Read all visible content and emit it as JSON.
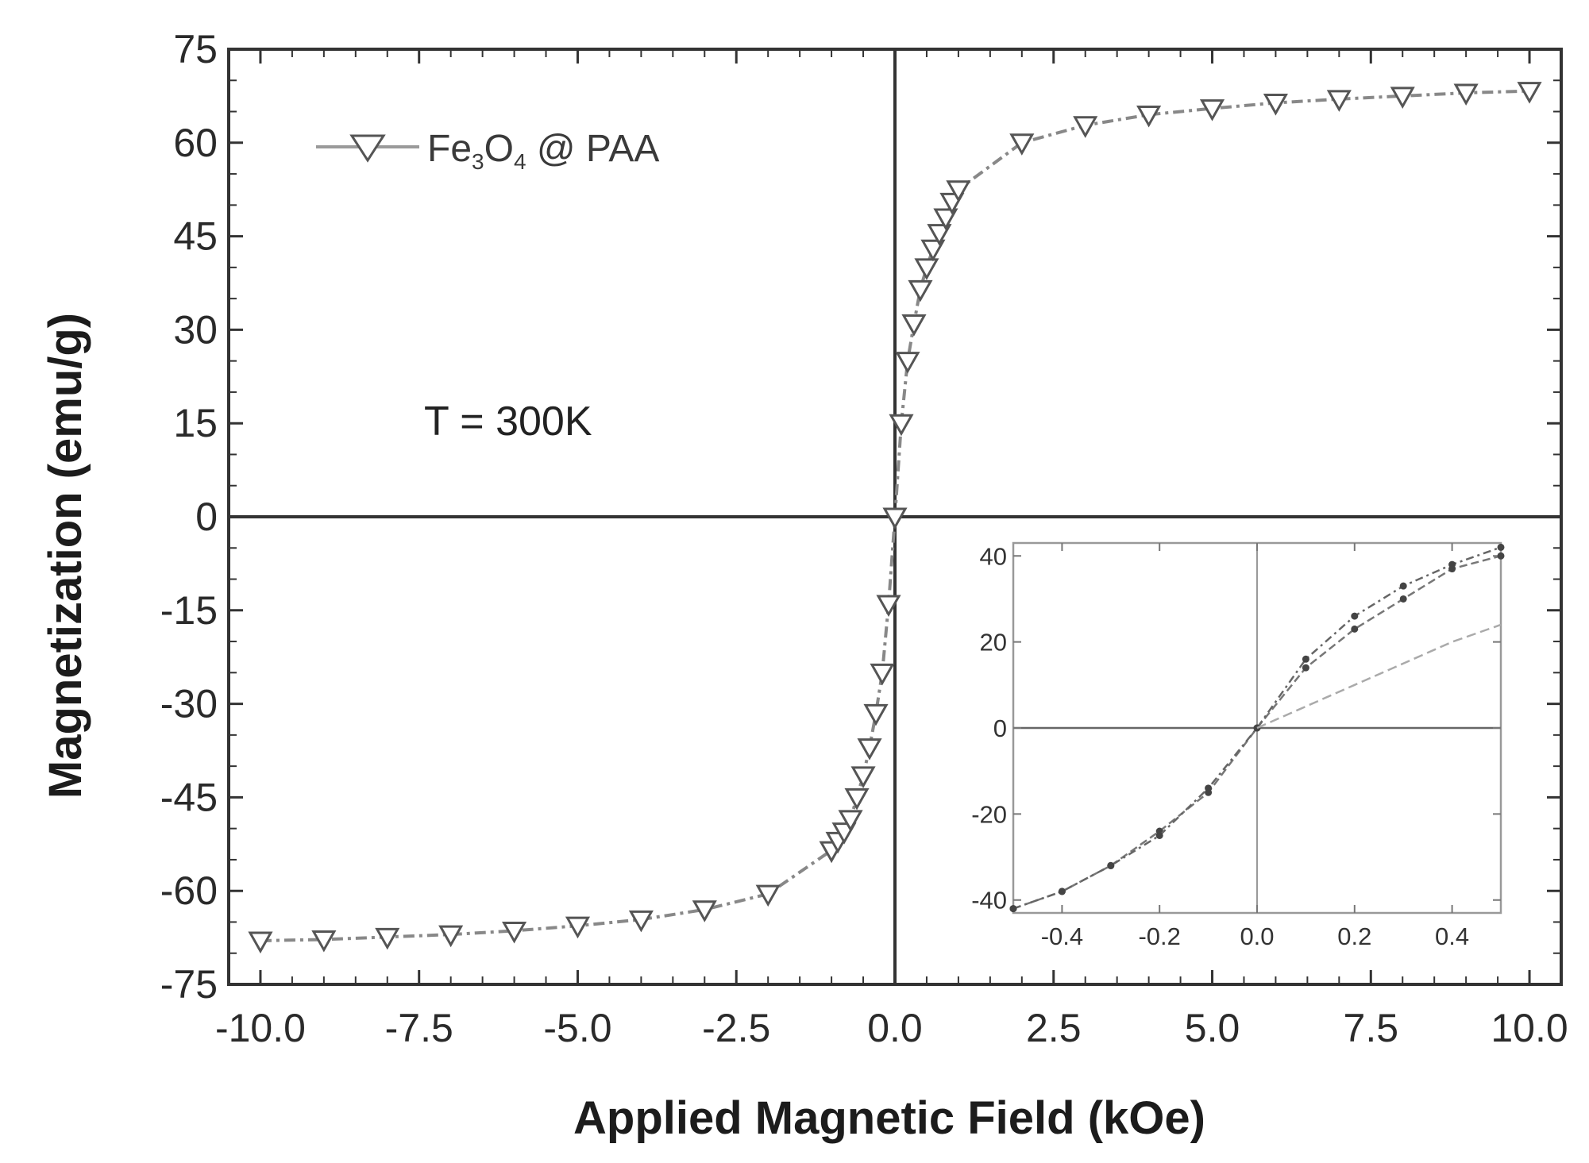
{
  "chart_data": [
    {
      "type": "line",
      "title": "",
      "xlabel": "Applied Magnetic Field (kOe)",
      "ylabel": "Magnetization (emu/g)",
      "xlim": [
        -10.5,
        10.5
      ],
      "ylim": [
        -75,
        75
      ],
      "xticks": [
        "-10.0",
        "-7.5",
        "-5.0",
        "-2.5",
        "0.0",
        "2.5",
        "5.0",
        "7.5",
        "10.0"
      ],
      "yticks": [
        "75",
        "60",
        "45",
        "30",
        "15",
        "0",
        "-15",
        "-30",
        "-45",
        "-60",
        "-75"
      ],
      "grid": false,
      "legend": {
        "position": "top-left",
        "entries": [
          {
            "label_base": "Fe",
            "sub1": "3",
            "mid": "O",
            "sub2": "4",
            "label_tail": " @ PAA"
          }
        ]
      },
      "annotation": "T = 300K",
      "series": [
        {
          "name": "Fe3O4 @ PAA",
          "marker": "triangle-down",
          "x": [
            -10,
            -9,
            -8,
            -7,
            -6,
            -5,
            -4,
            -3,
            -2,
            -1,
            -0.9,
            -0.8,
            -0.7,
            -0.6,
            -0.5,
            -0.4,
            -0.3,
            -0.2,
            -0.1,
            0,
            0.1,
            0.2,
            0.3,
            0.4,
            0.5,
            0.6,
            0.7,
            0.8,
            0.9,
            1,
            2,
            3,
            4,
            5,
            6,
            7,
            8,
            9,
            10
          ],
          "y": [
            -68,
            -67.8,
            -67.4,
            -67,
            -66.4,
            -65.6,
            -64.6,
            -63,
            -60.5,
            -53.5,
            -52,
            -50.5,
            -48.5,
            -45,
            -41.5,
            -37,
            -31.5,
            -25,
            -14,
            0,
            15,
            25,
            31,
            36.5,
            40,
            43,
            45.5,
            48,
            50.5,
            52.5,
            60,
            62.8,
            64.5,
            65.5,
            66.4,
            67,
            67.5,
            68,
            68.3
          ]
        }
      ]
    },
    {
      "type": "line",
      "title": "",
      "xlabel": "",
      "ylabel": "",
      "xlim": [
        -0.5,
        0.5
      ],
      "ylim": [
        -43,
        43
      ],
      "xticks": [
        "-0.4",
        "-0.2",
        "0.0",
        "0.2",
        "0.4"
      ],
      "yticks": [
        "40",
        "20",
        "0",
        "-20",
        "-40"
      ],
      "series": [
        {
          "x": [
            -0.5,
            -0.4,
            -0.3,
            -0.2,
            -0.1,
            0,
            0.1,
            0.2,
            0.3,
            0.4,
            0.5
          ],
          "y": [
            -42,
            -38,
            -32,
            -24,
            -15,
            0,
            14,
            23,
            30,
            37,
            40
          ]
        },
        {
          "x": [
            -0.5,
            -0.4,
            -0.3,
            -0.2,
            -0.1,
            0,
            0.1,
            0.2,
            0.3,
            0.4,
            0.5
          ],
          "y": [
            -42,
            -38,
            -32,
            -25,
            -14,
            0,
            16,
            26,
            33,
            38,
            42
          ]
        },
        {
          "x": [
            0,
            0.1,
            0.2,
            0.3,
            0.4,
            0.5
          ],
          "y": [
            0,
            5,
            10,
            15,
            20,
            24
          ]
        }
      ]
    }
  ]
}
